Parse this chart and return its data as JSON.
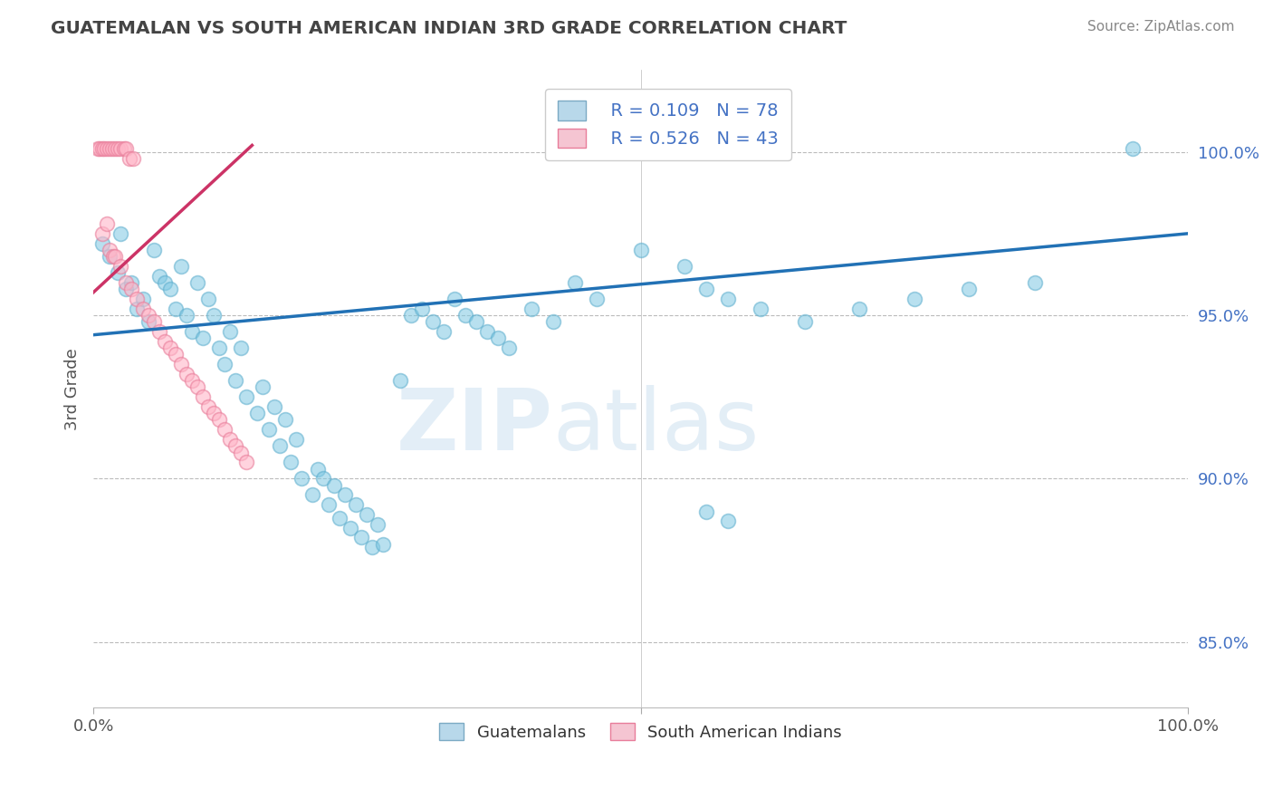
{
  "title": "GUATEMALAN VS SOUTH AMERICAN INDIAN 3RD GRADE CORRELATION CHART",
  "source": "Source: ZipAtlas.com",
  "ylabel": "3rd Grade",
  "xlim": [
    0,
    1.0
  ],
  "ylim": [
    0.83,
    1.025
  ],
  "yticks": [
    0.85,
    0.9,
    0.95,
    1.0
  ],
  "ytick_labels": [
    "85.0%",
    "90.0%",
    "95.0%",
    "100.0%"
  ],
  "blue_label": "Guatemalans",
  "pink_label": "South American Indians",
  "blue_R": "R = 0.109",
  "blue_N": "N = 78",
  "pink_R": "R = 0.526",
  "pink_N": "N = 43",
  "blue_color": "#7ec8e3",
  "pink_color": "#ffb6c8",
  "blue_edge_color": "#5aaccc",
  "pink_edge_color": "#e87d9a",
  "blue_line_color": "#2171b5",
  "pink_line_color": "#cc3366",
  "blue_dots_x": [
    0.008,
    0.015,
    0.022,
    0.025,
    0.03,
    0.035,
    0.04,
    0.045,
    0.05,
    0.055,
    0.06,
    0.065,
    0.07,
    0.075,
    0.08,
    0.085,
    0.09,
    0.095,
    0.1,
    0.105,
    0.11,
    0.115,
    0.12,
    0.125,
    0.13,
    0.135,
    0.14,
    0.15,
    0.155,
    0.16,
    0.165,
    0.17,
    0.175,
    0.18,
    0.185,
    0.19,
    0.2,
    0.205,
    0.21,
    0.215,
    0.22,
    0.225,
    0.23,
    0.235,
    0.24,
    0.245,
    0.25,
    0.255,
    0.26,
    0.265,
    0.28,
    0.29,
    0.3,
    0.31,
    0.32,
    0.33,
    0.34,
    0.35,
    0.36,
    0.37,
    0.38,
    0.4,
    0.42,
    0.44,
    0.46,
    0.5,
    0.54,
    0.56,
    0.58,
    0.61,
    0.65,
    0.7,
    0.75,
    0.8,
    0.86,
    0.95,
    0.56,
    0.58
  ],
  "blue_dots_y": [
    0.972,
    0.968,
    0.963,
    0.975,
    0.958,
    0.96,
    0.952,
    0.955,
    0.948,
    0.97,
    0.962,
    0.96,
    0.958,
    0.952,
    0.965,
    0.95,
    0.945,
    0.96,
    0.943,
    0.955,
    0.95,
    0.94,
    0.935,
    0.945,
    0.93,
    0.94,
    0.925,
    0.92,
    0.928,
    0.915,
    0.922,
    0.91,
    0.918,
    0.905,
    0.912,
    0.9,
    0.895,
    0.903,
    0.9,
    0.892,
    0.898,
    0.888,
    0.895,
    0.885,
    0.892,
    0.882,
    0.889,
    0.879,
    0.886,
    0.88,
    0.93,
    0.95,
    0.952,
    0.948,
    0.945,
    0.955,
    0.95,
    0.948,
    0.945,
    0.943,
    0.94,
    0.952,
    0.948,
    0.96,
    0.955,
    0.97,
    0.965,
    0.958,
    0.955,
    0.952,
    0.948,
    0.952,
    0.955,
    0.958,
    0.96,
    1.001,
    0.89,
    0.887
  ],
  "pink_dots_x": [
    0.004,
    0.006,
    0.008,
    0.01,
    0.012,
    0.015,
    0.017,
    0.02,
    0.022,
    0.025,
    0.028,
    0.03,
    0.033,
    0.036,
    0.008,
    0.012,
    0.015,
    0.018,
    0.02,
    0.025,
    0.03,
    0.035,
    0.04,
    0.045,
    0.05,
    0.055,
    0.06,
    0.065,
    0.07,
    0.075,
    0.08,
    0.085,
    0.09,
    0.095,
    0.1,
    0.105,
    0.11,
    0.115,
    0.12,
    0.125,
    0.13,
    0.135,
    0.14
  ],
  "pink_dots_y": [
    1.001,
    1.001,
    1.001,
    1.001,
    1.001,
    1.001,
    1.001,
    1.001,
    1.001,
    1.001,
    1.001,
    1.001,
    0.998,
    0.998,
    0.975,
    0.978,
    0.97,
    0.968,
    0.968,
    0.965,
    0.96,
    0.958,
    0.955,
    0.952,
    0.95,
    0.948,
    0.945,
    0.942,
    0.94,
    0.938,
    0.935,
    0.932,
    0.93,
    0.928,
    0.925,
    0.922,
    0.92,
    0.918,
    0.915,
    0.912,
    0.91,
    0.908,
    0.905
  ],
  "blue_trendline_x": [
    0.0,
    1.0
  ],
  "blue_trendline_y": [
    0.944,
    0.975
  ],
  "pink_trendline_x": [
    0.0,
    0.145
  ],
  "pink_trendline_y": [
    0.957,
    1.002
  ],
  "watermark_zip": "ZIP",
  "watermark_atlas": "atlas",
  "background_color": "#ffffff",
  "grid_color": "#bbbbbb"
}
